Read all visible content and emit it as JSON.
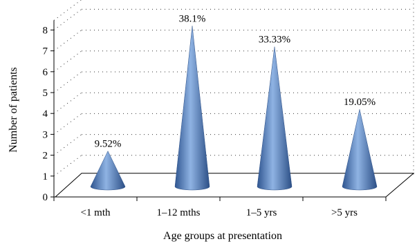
{
  "chart_data": {
    "type": "bar",
    "style": "3d-cone",
    "categories": [
      "<1 mth",
      "1–12 mths",
      "1–5 yrs",
      ">5 yrs"
    ],
    "values": [
      2,
      8,
      7,
      4
    ],
    "data_labels": [
      "9.52%",
      "38.1%",
      "33.33%",
      "19.05%"
    ],
    "xlabel": "Age groups at presentation",
    "ylabel": "Number of patients",
    "ylim": [
      0,
      8
    ],
    "yticks": [
      0,
      1,
      2,
      3,
      4,
      5,
      6,
      7,
      8
    ],
    "grid": true,
    "legend": "none",
    "colors": {
      "cone_light": "#8fb3e3",
      "cone_mid": "#4f7fc0",
      "cone_dark": "#2c4f86"
    }
  }
}
